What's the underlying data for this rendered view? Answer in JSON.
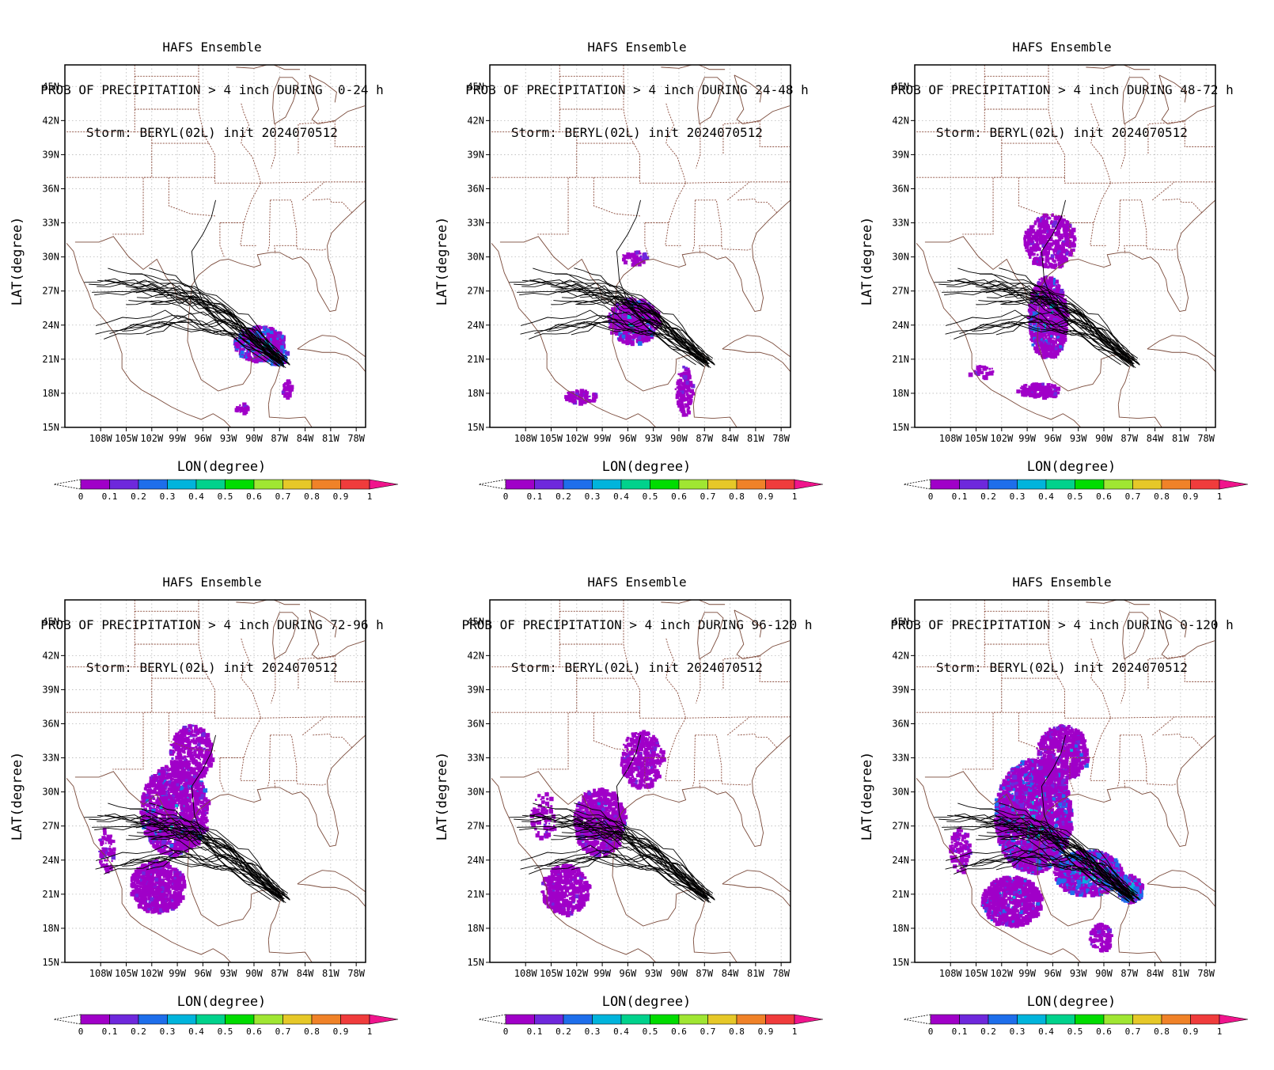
{
  "figure": {
    "suptitle": "HAFS Ensemble",
    "storm_line": "Storm: BERYL(02L) init 2024070512",
    "xlabel": "LON(degree)",
    "ylabel": "LAT(degree)",
    "lat_ticks": [
      "15N",
      "18N",
      "21N",
      "24N",
      "27N",
      "30N",
      "33N",
      "36N",
      "39N",
      "42N",
      "45N"
    ],
    "lon_ticks": [
      "108W",
      "105W",
      "102W",
      "99W",
      "96W",
      "93W",
      "90W",
      "87W",
      "84W",
      "81W",
      "78W"
    ],
    "colorbar": {
      "labels": [
        "0",
        "0.1",
        "0.2",
        "0.3",
        "0.4",
        "0.5",
        "0.6",
        "0.7",
        "0.8",
        "0.9",
        "1"
      ],
      "colors": [
        "#a000c8",
        "#6e28dc",
        "#1e6eeb",
        "#00b4dc",
        "#00d28c",
        "#00dc00",
        "#a0e632",
        "#e6c828",
        "#f08228",
        "#f03c3c",
        "#f0148c"
      ]
    }
  },
  "panels": [
    {
      "line2": "PROB OF PRECIPITATION > 4 inch DURING  0-24 h",
      "period": "0-24 h"
    },
    {
      "line2": "PROB OF PRECIPITATION > 4 inch DURING 24-48 h",
      "period": "24-48 h"
    },
    {
      "line2": "PROB OF PRECIPITATION > 4 inch DURING 48-72 h",
      "period": "48-72 h"
    },
    {
      "line2": "PROB OF PRECIPITATION > 4 inch DURING 72-96 h",
      "period": "72-96 h"
    },
    {
      "line2": "PROB OF PRECIPITATION > 4 inch DURING 96-120 h",
      "period": "96-120 h"
    },
    {
      "line2": "PROB OF PRECIPITATION > 4 inch DURING 0-120 h",
      "period": "0-120 h"
    }
  ]
}
